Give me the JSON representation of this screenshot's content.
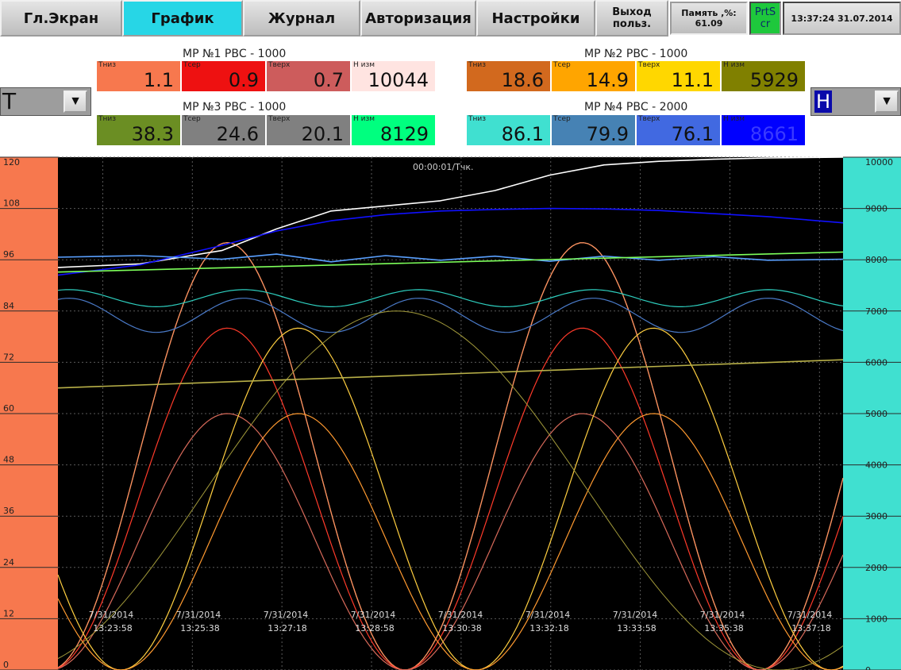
{
  "toolbar": {
    "main": "Гл.Экран",
    "chart": "График",
    "journal": "Журнал",
    "auth": "Авторизация",
    "settings": "Настройки",
    "logout_1": "Выход",
    "logout_2": "польз.",
    "memory_1": "Память ,%:",
    "memory_2": "61.09",
    "prtscr_1": "PrtS",
    "prtscr_2": "cr",
    "clock": "13:37:24 31.07.2014"
  },
  "left_selector": {
    "value": "T"
  },
  "right_selector": {
    "value": "H"
  },
  "groups": [
    {
      "title": "МР №1 РВС - 1000",
      "cells": [
        {
          "label": "Тниз",
          "value": "1.1",
          "color": "#f7784e"
        },
        {
          "label": "Тсер",
          "value": "0.9",
          "color": "#ee1111"
        },
        {
          "label": "Тверх",
          "value": "0.7",
          "color": "#cd5c5c"
        },
        {
          "label": "Н изм",
          "value": "10044",
          "color": "#ffe4e1"
        }
      ]
    },
    {
      "title": "МР №2 РВС - 1000",
      "cells": [
        {
          "label": "Тниз",
          "value": "18.6",
          "color": "#d2691e"
        },
        {
          "label": "Тсер",
          "value": "14.9",
          "color": "#ffa500"
        },
        {
          "label": "Тверх",
          "value": "11.1",
          "color": "#ffd700"
        },
        {
          "label": "Н изм",
          "value": "5929",
          "color": "#808000"
        }
      ]
    },
    {
      "title": "МР №3 РВС - 1000",
      "cells": [
        {
          "label": "Тниз",
          "value": "38.3",
          "color": "#6b8e23"
        },
        {
          "label": "Тсер",
          "value": "24.6",
          "color": "#808080"
        },
        {
          "label": "Тверх",
          "value": "20.1",
          "color": "#808080"
        },
        {
          "label": "Н изм",
          "value": "8129",
          "color": "#00ff7f"
        }
      ]
    },
    {
      "title": "МР №4 РВС - 2000",
      "cells": [
        {
          "label": "Тниз",
          "value": "86.1",
          "color": "#40e0d0"
        },
        {
          "label": "Тсер",
          "value": "79.9",
          "color": "#4682b4"
        },
        {
          "label": "Тверх",
          "value": "76.1",
          "color": "#4169e1"
        },
        {
          "label": "Н изм",
          "value": "8661",
          "color": "#0000ff"
        }
      ]
    }
  ],
  "chart_data": {
    "type": "line",
    "title": "00:00:01/Тчк.",
    "y_left": {
      "min": 0,
      "max": 120,
      "ticks": [
        "0",
        "12",
        "24",
        "36",
        "48",
        "60",
        "72",
        "84",
        "96",
        "108",
        "120"
      ]
    },
    "y_right": {
      "min": 0,
      "max": 10000,
      "ticks": [
        "0",
        "1000",
        "2000",
        "3000",
        "4000",
        "5000",
        "6000",
        "7000",
        "8000",
        "9000",
        "10000"
      ]
    },
    "x_labels": [
      {
        "date": "7/31/2014",
        "time": "13:23:58"
      },
      {
        "date": "7/31/2014",
        "time": "13:25:38"
      },
      {
        "date": "7/31/2014",
        "time": "13:27:18"
      },
      {
        "date": "7/31/2014",
        "time": "13:28:58"
      },
      {
        "date": "7/31/2014",
        "time": "13:30:38"
      },
      {
        "date": "7/31/2014",
        "time": "13:32:18"
      },
      {
        "date": "7/31/2014",
        "time": "13:33:58"
      },
      {
        "date": "7/31/2014",
        "time": "13:35:38"
      },
      {
        "date": "7/31/2014",
        "time": "13:37:18"
      }
    ],
    "x_range_min": [
      0,
      14.37
    ],
    "series": [
      {
        "color": "#ffffff",
        "axis": "right",
        "x": [
          0,
          1.5,
          3,
          4,
          5,
          6,
          7,
          8,
          9,
          10,
          11,
          12,
          13,
          14.37
        ],
        "y": [
          7850,
          7920,
          8180,
          8600,
          8950,
          9050,
          9150,
          9350,
          9650,
          9850,
          9920,
          9960,
          9985,
          10000
        ]
      },
      {
        "color": "#1010ff",
        "axis": "right",
        "x": [
          0,
          1.5,
          3,
          4,
          5,
          6,
          7,
          8,
          9,
          10,
          11,
          12,
          13,
          14.37
        ],
        "y": [
          7700,
          7900,
          8280,
          8560,
          8760,
          8880,
          8950,
          8980,
          9000,
          8990,
          8960,
          8900,
          8840,
          8720
        ]
      },
      {
        "color": "#5aa0ff",
        "axis": "right",
        "x": [
          0,
          1.5,
          3,
          4,
          5,
          6,
          7,
          8,
          9,
          10,
          11,
          12,
          13,
          14.37
        ],
        "y": [
          8050,
          8080,
          8010,
          8110,
          7960,
          8080,
          7990,
          8070,
          7970,
          8070,
          7990,
          8060,
          7990,
          8010
        ]
      },
      {
        "color": "#7dff5a",
        "axis": "right",
        "x": [
          0,
          14.37
        ],
        "y": [
          7760,
          8150
        ]
      },
      {
        "color": "#b8b048",
        "axis": "right",
        "x": [
          0,
          14.37
        ],
        "y": [
          5500,
          6050
        ]
      }
    ]
  }
}
